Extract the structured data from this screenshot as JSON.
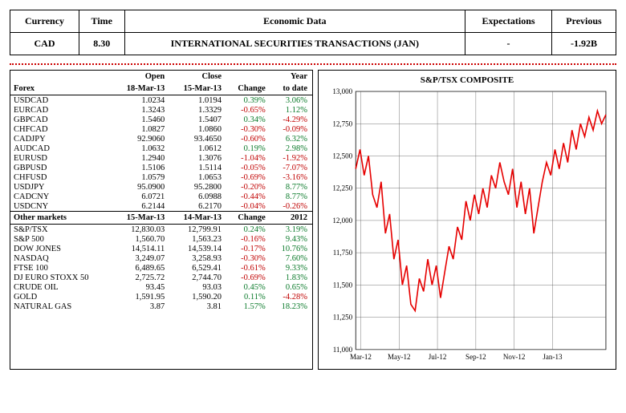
{
  "top_headers": {
    "currency": "Currency",
    "time": "Time",
    "data": "Economic Data",
    "expectations": "Expectations",
    "previous": "Previous"
  },
  "top_row": {
    "currency": "CAD",
    "time": "8.30",
    "data": "INTERNATIONAL SECURITIES TRANSACTIONS (JAN)",
    "expectations": "-",
    "previous": "-1.92B"
  },
  "forex_header": {
    "label": "Forex",
    "open_line1": "Open",
    "open_line2": "18-Mar-13",
    "close_line1": "Close",
    "close_line2": "15-Mar-13",
    "change": "Change",
    "ytd_line1": "Year",
    "ytd_line2": "to date"
  },
  "forex_rows": [
    {
      "pair": "USDCAD",
      "open": "1.0234",
      "close": "1.0194",
      "chg": "0.39%",
      "chg_sign": 1,
      "ytd": "3.06%",
      "ytd_sign": 1
    },
    {
      "pair": "EURCAD",
      "open": "1.3243",
      "close": "1.3329",
      "chg": "-0.65%",
      "chg_sign": -1,
      "ytd": "1.12%",
      "ytd_sign": 1
    },
    {
      "pair": "GBPCAD",
      "open": "1.5460",
      "close": "1.5407",
      "chg": "0.34%",
      "chg_sign": 1,
      "ytd": "-4.29%",
      "ytd_sign": -1
    },
    {
      "pair": "CHFCAD",
      "open": "1.0827",
      "close": "1.0860",
      "chg": "-0.30%",
      "chg_sign": -1,
      "ytd": "-0.09%",
      "ytd_sign": -1
    },
    {
      "pair": "CADJPY",
      "open": "92.9060",
      "close": "93.4650",
      "chg": "-0.60%",
      "chg_sign": -1,
      "ytd": "6.32%",
      "ytd_sign": 1
    },
    {
      "pair": "AUDCAD",
      "open": "1.0632",
      "close": "1.0612",
      "chg": "0.19%",
      "chg_sign": 1,
      "ytd": "2.98%",
      "ytd_sign": 1
    },
    {
      "pair": "EURUSD",
      "open": "1.2940",
      "close": "1.3076",
      "chg": "-1.04%",
      "chg_sign": -1,
      "ytd": "-1.92%",
      "ytd_sign": -1
    },
    {
      "pair": "GBPUSD",
      "open": "1.5106",
      "close": "1.5114",
      "chg": "-0.05%",
      "chg_sign": -1,
      "ytd": "-7.07%",
      "ytd_sign": -1
    },
    {
      "pair": "CHFUSD",
      "open": "1.0579",
      "close": "1.0653",
      "chg": "-0.69%",
      "chg_sign": -1,
      "ytd": "-3.16%",
      "ytd_sign": -1
    },
    {
      "pair": "USDJPY",
      "open": "95.0900",
      "close": "95.2800",
      "chg": "-0.20%",
      "chg_sign": -1,
      "ytd": "8.77%",
      "ytd_sign": 1
    },
    {
      "pair": "CADCNY",
      "open": "6.0721",
      "close": "6.0988",
      "chg": "-0.44%",
      "chg_sign": -1,
      "ytd": "8.77%",
      "ytd_sign": 1
    },
    {
      "pair": "USDCNY",
      "open": "6.2144",
      "close": "6.2170",
      "chg": "-0.04%",
      "chg_sign": -1,
      "ytd": "-0.26%",
      "ytd_sign": -1
    }
  ],
  "other_header": {
    "label": "Other markets",
    "col1": "15-Mar-13",
    "col2": "14-Mar-13",
    "change": "Change",
    "year": "2012"
  },
  "other_rows": [
    {
      "name": "S&P/TSX",
      "v1": "12,830.03",
      "v2": "12,799.91",
      "chg": "0.24%",
      "chg_sign": 1,
      "yr": "3.19%",
      "yr_sign": 1
    },
    {
      "name": "S&P 500",
      "v1": "1,560.70",
      "v2": "1,563.23",
      "chg": "-0.16%",
      "chg_sign": -1,
      "yr": "9.43%",
      "yr_sign": 1
    },
    {
      "name": "DOW JONES",
      "v1": "14,514.11",
      "v2": "14,539.14",
      "chg": "-0.17%",
      "chg_sign": -1,
      "yr": "10.76%",
      "yr_sign": 1
    },
    {
      "name": "NASDAQ",
      "v1": "3,249.07",
      "v2": "3,258.93",
      "chg": "-0.30%",
      "chg_sign": -1,
      "yr": "7.60%",
      "yr_sign": 1
    },
    {
      "name": "FTSE 100",
      "v1": "6,489.65",
      "v2": "6,529.41",
      "chg": "-0.61%",
      "chg_sign": -1,
      "yr": "9.33%",
      "yr_sign": 1
    },
    {
      "name": "DJ EURO STOXX 50",
      "v1": "2,725.72",
      "v2": "2,744.70",
      "chg": "-0.69%",
      "chg_sign": -1,
      "yr": "1.83%",
      "yr_sign": 1
    },
    {
      "name": "CRUDE OIL",
      "v1": "93.45",
      "v2": "93.03",
      "chg": "0.45%",
      "chg_sign": 1,
      "yr": "0.65%",
      "yr_sign": 1
    },
    {
      "name": "GOLD",
      "v1": "1,591.95",
      "v2": "1,590.20",
      "chg": "0.11%",
      "chg_sign": 1,
      "yr": "-4.28%",
      "yr_sign": -1
    },
    {
      "name": "NATURAL GAS",
      "v1": "3.87",
      "v2": "3.81",
      "chg": "1.57%",
      "chg_sign": 1,
      "yr": "18.23%",
      "yr_sign": 1
    }
  ],
  "chart": {
    "title": "S&P/TSX COMPOSITE",
    "ylim": [
      11000,
      13000
    ],
    "ytick_step": 250,
    "yticks": [
      "11,000",
      "11,250",
      "11,500",
      "11,750",
      "12,000",
      "12,250",
      "12,500",
      "12,750",
      "13,000"
    ],
    "xlabels": [
      "Mar-12",
      "May-12",
      "Jul-12",
      "Sep-12",
      "Nov-12",
      "Jan-13"
    ],
    "line_color": "#e60000",
    "grid_color": "#555555",
    "background": "#ffffff",
    "line_width": 1.6,
    "series": [
      12400,
      12550,
      12350,
      12500,
      12200,
      12100,
      12300,
      11900,
      12050,
      11700,
      11850,
      11500,
      11650,
      11350,
      11300,
      11550,
      11450,
      11700,
      11500,
      11650,
      11400,
      11600,
      11800,
      11700,
      11950,
      11850,
      12150,
      12000,
      12200,
      12050,
      12250,
      12100,
      12350,
      12250,
      12450,
      12300,
      12200,
      12400,
      12100,
      12300,
      12050,
      12250,
      11900,
      12100,
      12300,
      12450,
      12350,
      12550,
      12400,
      12600,
      12450,
      12700,
      12550,
      12750,
      12650,
      12800,
      12700,
      12850,
      12750,
      12820
    ]
  }
}
